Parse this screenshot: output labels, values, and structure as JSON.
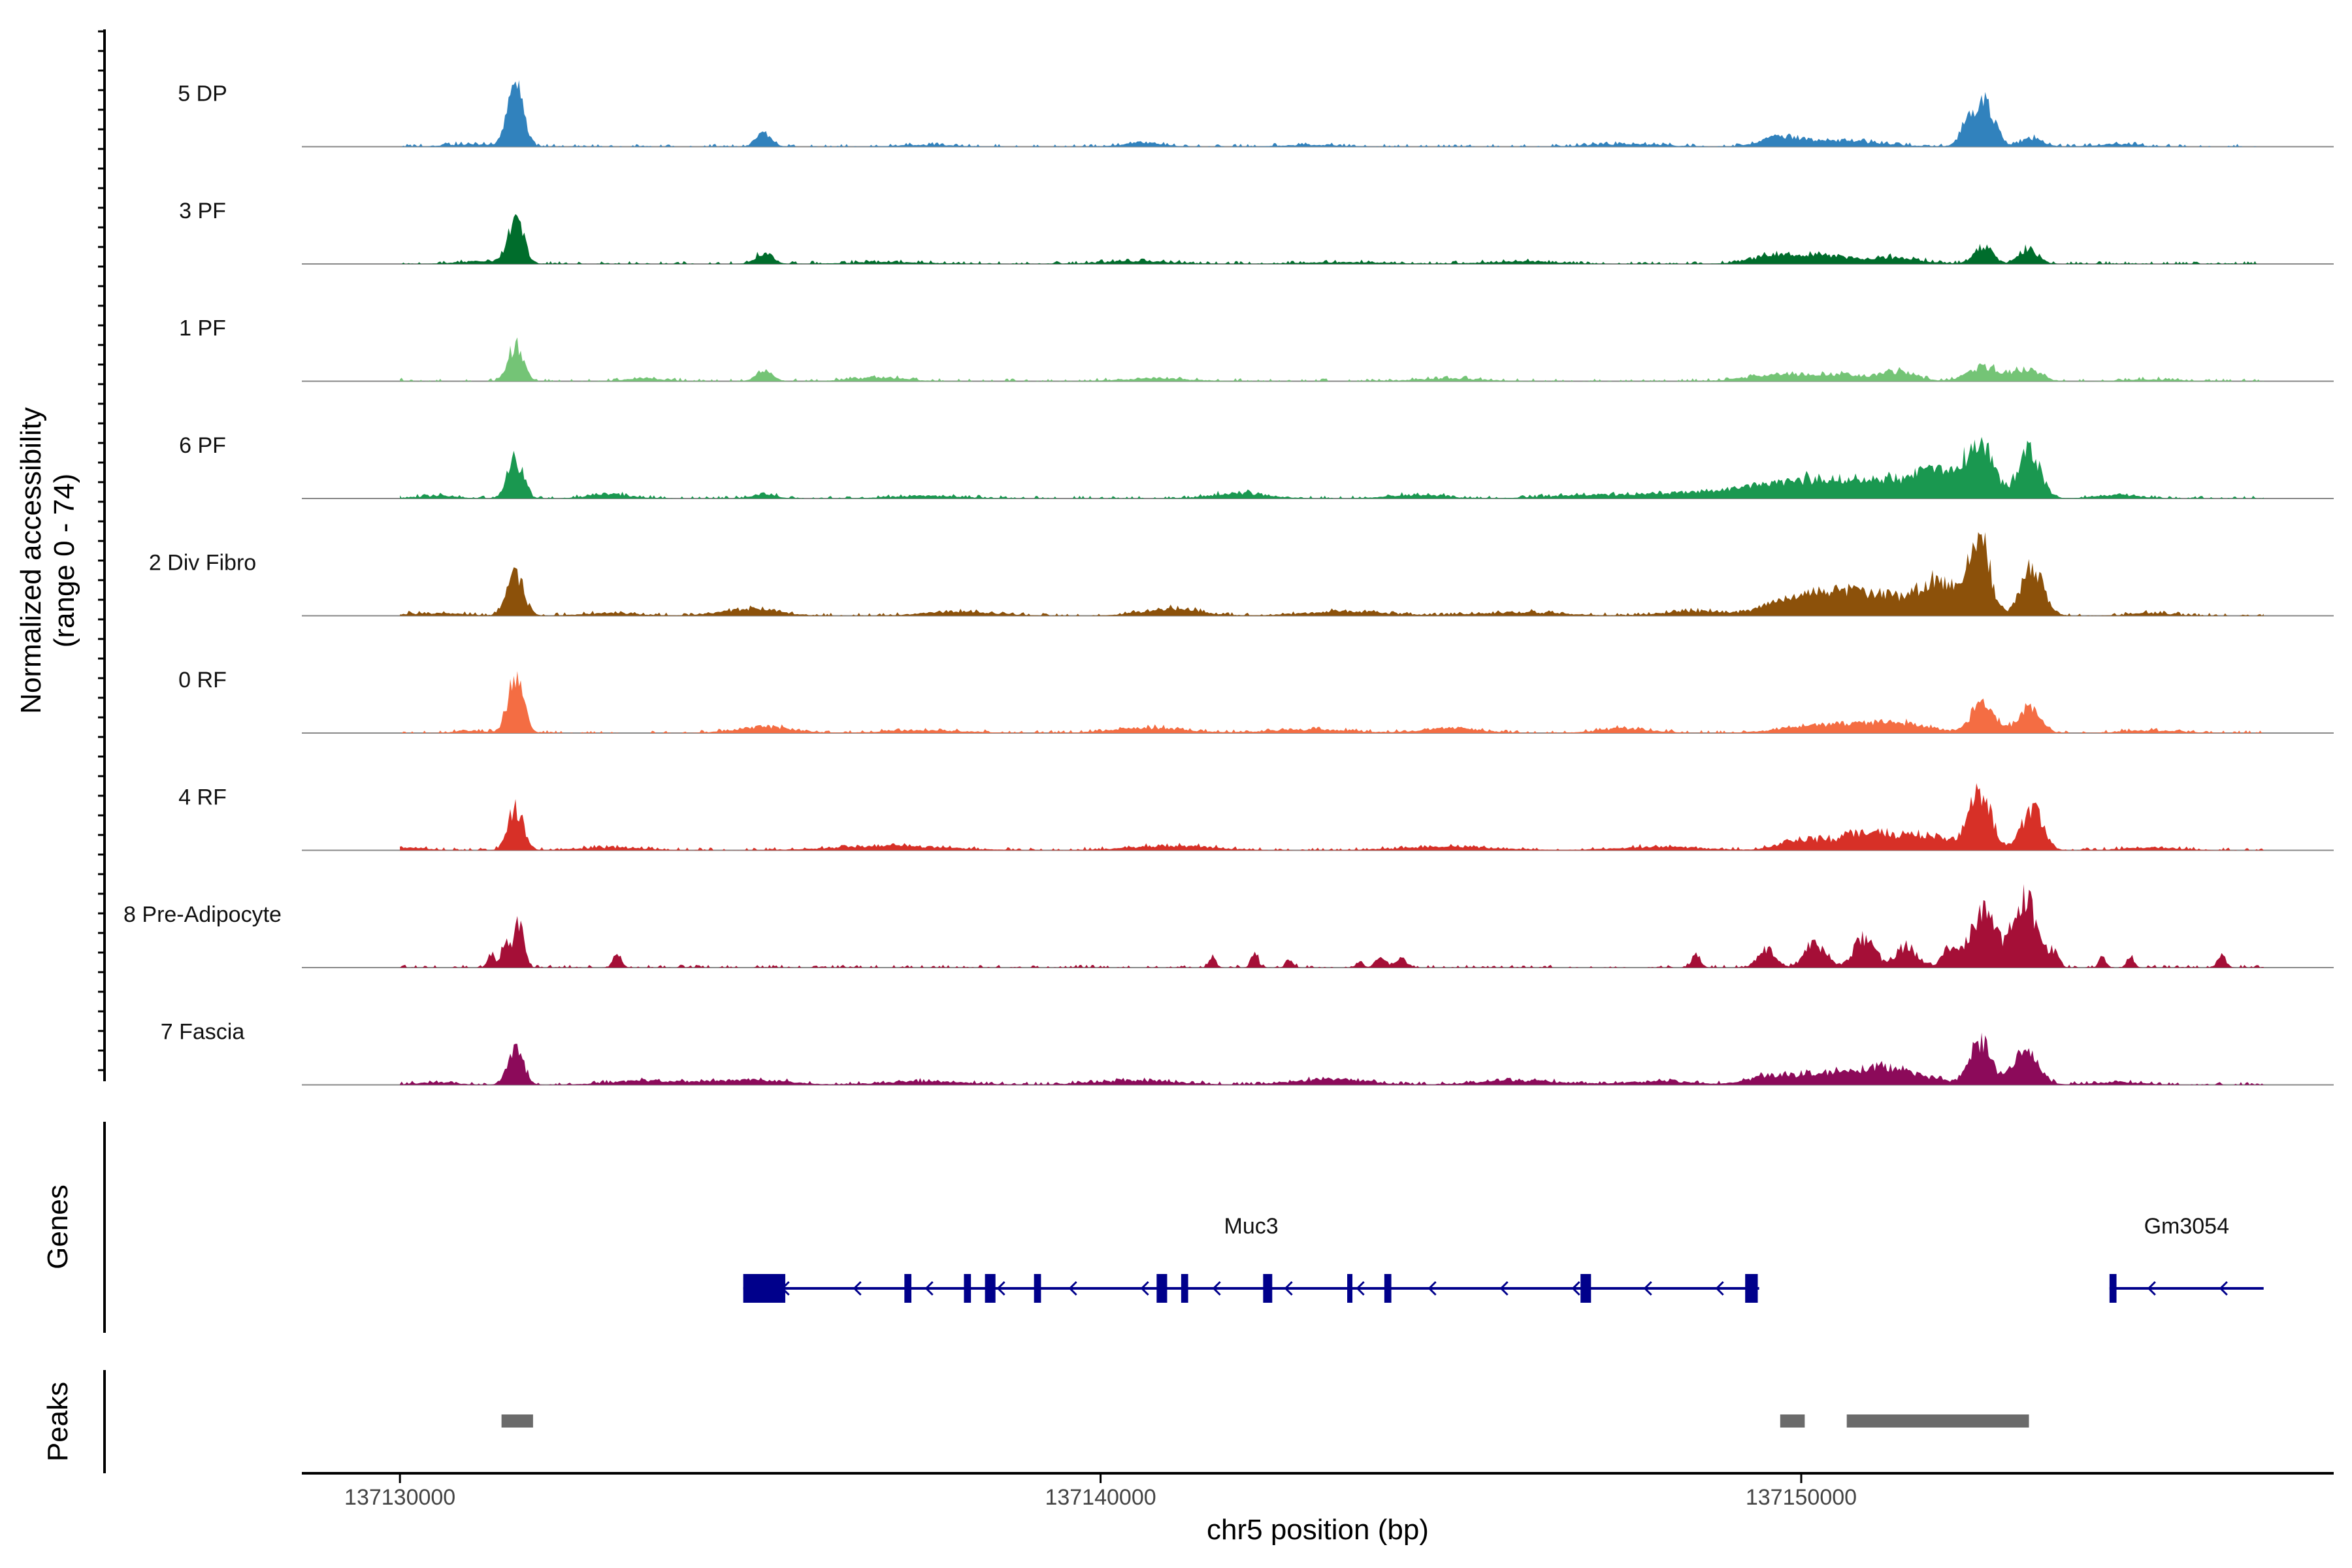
{
  "chart_data": {
    "type": "area",
    "title": "",
    "ylabel": "Normalized accessibility",
    "ylabel_range": "(range 0 - 74)",
    "ylim": [
      0,
      74
    ],
    "xlabel": "chr5 position (bp)",
    "xlim": [
      137128600,
      137157600
    ],
    "xticks": [
      137130000,
      137140000,
      137150000
    ],
    "xtick_labels": [
      "137130000",
      "137140000",
      "137150000"
    ],
    "tracks": [
      {
        "name": "5 DP",
        "color": "#3182bd",
        "peaks": [
          [
            137131650,
            74,
            110
          ],
          [
            137135200,
            16,
            110
          ],
          [
            137152650,
            46,
            130
          ],
          [
            137152400,
            30,
            120
          ],
          [
            137153300,
            10,
            150
          ],
          [
            137150500,
            7,
            600
          ],
          [
            137149700,
            9,
            250
          ],
          [
            137140600,
            5,
            250
          ],
          [
            137147500,
            3,
            500
          ],
          [
            137131000,
            3,
            300
          ],
          [
            137154500,
            3,
            300
          ],
          [
            137137500,
            2,
            400
          ],
          [
            137143000,
            2,
            400
          ]
        ]
      },
      {
        "name": "3 PF",
        "color": "#006d2c",
        "peaks": [
          [
            137131650,
            56,
            110
          ],
          [
            137135200,
            13,
            120
          ],
          [
            137152600,
            20,
            130
          ],
          [
            137153250,
            18,
            130
          ],
          [
            137150200,
            10,
            400
          ],
          [
            137151300,
            7,
            400
          ],
          [
            137149500,
            7,
            300
          ],
          [
            137140500,
            3,
            500
          ],
          [
            137146000,
            3,
            500
          ],
          [
            137131100,
            3,
            300
          ],
          [
            137137000,
            2,
            600
          ],
          [
            137143500,
            2,
            600
          ]
        ]
      },
      {
        "name": "1 PF",
        "color": "#74c476",
        "peaks": [
          [
            137131650,
            40,
            110
          ],
          [
            137135200,
            12,
            120
          ],
          [
            137152600,
            16,
            220
          ],
          [
            137153200,
            13,
            200
          ],
          [
            137150400,
            8,
            500
          ],
          [
            137151400,
            10,
            250
          ],
          [
            137149500,
            5,
            400
          ],
          [
            137129900,
            4,
            80
          ],
          [
            137136800,
            4,
            400
          ],
          [
            137140800,
            3,
            500
          ],
          [
            137145000,
            3,
            500
          ],
          [
            137133500,
            3,
            300
          ],
          [
            137155000,
            2,
            400
          ]
        ]
      },
      {
        "name": "6 PF",
        "color": "#1a9850",
        "peaks": [
          [
            137131650,
            44,
            110
          ],
          [
            137152550,
            54,
            180
          ],
          [
            137153250,
            52,
            160
          ],
          [
            137151000,
            18,
            800
          ],
          [
            137149800,
            14,
            600
          ],
          [
            137152000,
            22,
            400
          ],
          [
            137148500,
            6,
            600
          ],
          [
            137147000,
            4,
            600
          ],
          [
            137142000,
            6,
            400
          ],
          [
            137135200,
            6,
            150
          ],
          [
            137133000,
            5,
            300
          ],
          [
            137137500,
            3,
            500
          ],
          [
            137144500,
            4,
            400
          ],
          [
            137154500,
            4,
            300
          ],
          [
            137130500,
            3,
            300
          ]
        ]
      },
      {
        "name": "2 Div Fibro",
        "color": "#8c510a",
        "peaks": [
          [
            137131650,
            44,
            120
          ],
          [
            137152550,
            86,
            140
          ],
          [
            137153300,
            54,
            160
          ],
          [
            137151000,
            26,
            500
          ],
          [
            137149700,
            14,
            300
          ],
          [
            137150300,
            16,
            300
          ],
          [
            137151900,
            22,
            250
          ],
          [
            137152100,
            18,
            300
          ],
          [
            137135000,
            8,
            400
          ],
          [
            137141000,
            8,
            400
          ],
          [
            137138000,
            5,
            500
          ],
          [
            137143500,
            5,
            600
          ],
          [
            137146000,
            4,
            600
          ],
          [
            137148500,
            5,
            500
          ],
          [
            137130500,
            3,
            400
          ],
          [
            137133000,
            3,
            400
          ],
          [
            137155000,
            3,
            300
          ]
        ]
      },
      {
        "name": "0 RF",
        "color": "#f46d43",
        "peaks": [
          [
            137131650,
            64,
            110
          ],
          [
            137152600,
            40,
            150
          ],
          [
            137153250,
            28,
            160
          ],
          [
            137151300,
            12,
            500
          ],
          [
            137150200,
            8,
            500
          ],
          [
            137135200,
            7,
            400
          ],
          [
            137140700,
            6,
            500
          ],
          [
            137145000,
            6,
            400
          ],
          [
            137147500,
            5,
            400
          ],
          [
            137137500,
            3,
            600
          ],
          [
            137131000,
            3,
            200
          ],
          [
            137143000,
            4,
            600
          ],
          [
            137155000,
            3,
            400
          ]
        ]
      },
      {
        "name": "4 RF",
        "color": "#d73027",
        "peaks": [
          [
            137131650,
            48,
            110
          ],
          [
            137152550,
            64,
            160
          ],
          [
            137153300,
            48,
            150
          ],
          [
            137151300,
            14,
            500
          ],
          [
            137150000,
            12,
            300
          ],
          [
            137150800,
            12,
            300
          ],
          [
            137151900,
            10,
            300
          ],
          [
            137137000,
            5,
            800
          ],
          [
            137141000,
            5,
            600
          ],
          [
            137145000,
            4,
            700
          ],
          [
            137148000,
            4,
            600
          ],
          [
            137133000,
            3,
            500
          ],
          [
            137155000,
            3,
            400
          ],
          [
            137130200,
            3,
            200
          ]
        ]
      },
      {
        "name": "8 Pre-Adipocyte",
        "color": "#a50f37",
        "peaks": [
          [
            137131700,
            52,
            70
          ],
          [
            137131500,
            30,
            60
          ],
          [
            137131300,
            18,
            50
          ],
          [
            137133100,
            14,
            60
          ],
          [
            137141600,
            12,
            50
          ],
          [
            137142200,
            16,
            50
          ],
          [
            137142700,
            10,
            50
          ],
          [
            137143700,
            8,
            50
          ],
          [
            137144000,
            10,
            80
          ],
          [
            137144300,
            10,
            80
          ],
          [
            137148500,
            16,
            60
          ],
          [
            137149500,
            22,
            120
          ],
          [
            137150200,
            26,
            150
          ],
          [
            137150900,
            34,
            150
          ],
          [
            137151500,
            24,
            150
          ],
          [
            137152100,
            20,
            100
          ],
          [
            137152600,
            60,
            200
          ],
          [
            137153200,
            80,
            160
          ],
          [
            137153600,
            16,
            70
          ],
          [
            137154300,
            12,
            50
          ],
          [
            137154700,
            12,
            50
          ],
          [
            137156000,
            14,
            60
          ]
        ]
      },
      {
        "name": "7 Fascia",
        "color": "#8c0a5a",
        "peaks": [
          [
            137131650,
            46,
            110
          ],
          [
            137152550,
            50,
            150
          ],
          [
            137153200,
            38,
            180
          ],
          [
            137151200,
            20,
            500
          ],
          [
            137150200,
            10,
            400
          ],
          [
            137149500,
            8,
            300
          ],
          [
            137133500,
            5,
            500
          ],
          [
            137135000,
            6,
            500
          ],
          [
            137137500,
            4,
            600
          ],
          [
            137140500,
            5,
            600
          ],
          [
            137143300,
            7,
            500
          ],
          [
            137146000,
            5,
            600
          ],
          [
            137148000,
            4,
            500
          ],
          [
            137130500,
            3,
            300
          ],
          [
            137154500,
            3,
            400
          ]
        ]
      }
    ],
    "genes": [
      {
        "name": "Muc3",
        "strand": "-",
        "start": 137134900,
        "end": 137149400,
        "exons": [
          [
            137134900,
            137135500
          ],
          [
            137137200,
            137137300
          ],
          [
            137138050,
            137138150
          ],
          [
            137138350,
            137138500
          ],
          [
            137139050,
            137139150
          ],
          [
            137140800,
            137140950
          ],
          [
            137141150,
            137141250
          ],
          [
            137142320,
            137142450
          ],
          [
            137143520,
            137143580
          ],
          [
            137144050,
            137144150
          ],
          [
            137146850,
            137147000
          ],
          [
            137149200,
            137149380
          ]
        ]
      },
      {
        "name": "Gm3054",
        "strand": "-",
        "start": 137154400,
        "end": 137156600,
        "exons": [
          [
            137154400,
            137154500
          ]
        ]
      }
    ],
    "peaks_track": [
      [
        137131450,
        137131900
      ],
      [
        137149700,
        137150050
      ],
      [
        137150650,
        137153250
      ]
    ]
  },
  "labels": {
    "genes_track": "Genes",
    "peaks_track": "Peaks"
  },
  "colors": {
    "gene": "#00008b",
    "peak_bar": "#6b6b6b",
    "baseline": "#888888",
    "axis": "#000000"
  }
}
